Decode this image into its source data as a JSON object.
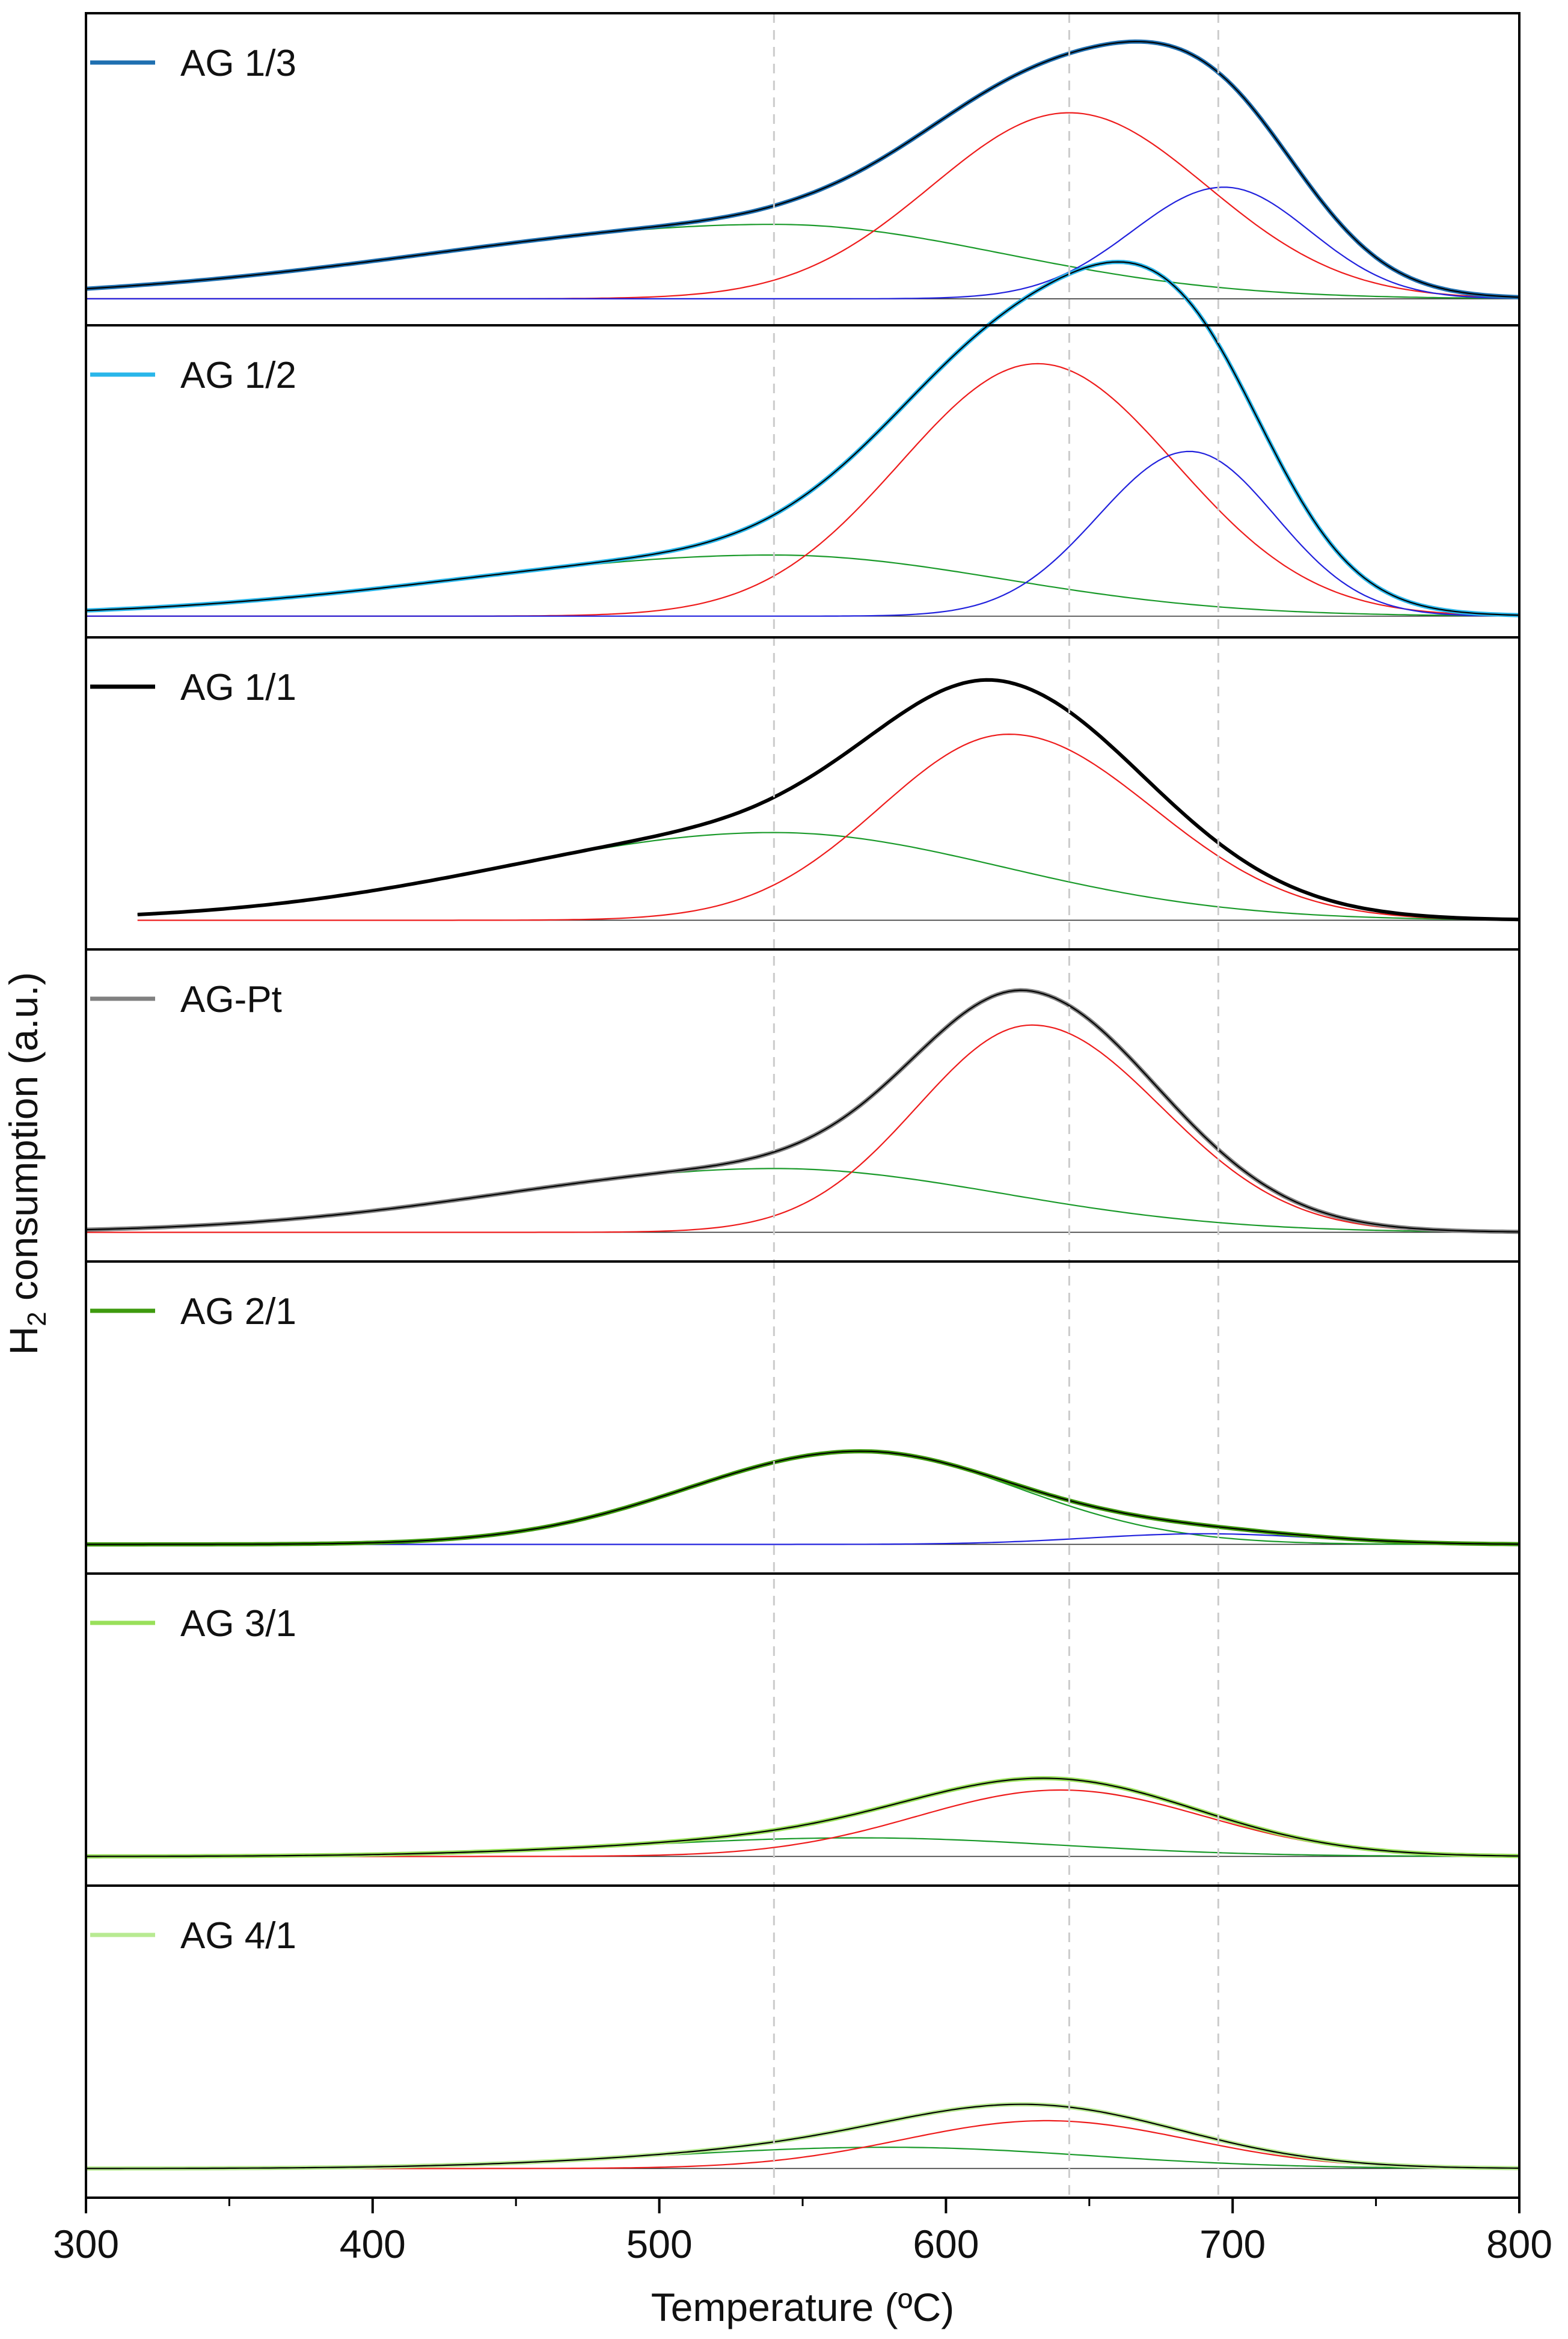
{
  "chart_data": {
    "type": "line",
    "title": "",
    "xlabel": "Temperature (ºC)",
    "ylabel_main": "H",
    "ylabel_sub": "2",
    "ylabel_rest": " consumption (a.u.)",
    "xlim": [
      300,
      800
    ],
    "xticks": [
      300,
      400,
      500,
      600,
      700,
      800
    ],
    "ylim": [
      0,
      1
    ],
    "reference_lines_x": [
      540,
      643,
      695
    ],
    "colors": {
      "fit": "#000000",
      "red": "#ee1c1c",
      "green": "#1a9a2a",
      "blue": "#2222dd",
      "ref": "#cccccc"
    },
    "panels": [
      {
        "name": "AG 1/3",
        "legend_color": "#1f6fb0",
        "base": 0.05,
        "x_start": 300,
        "components": [
          {
            "label": "green",
            "color": "#1a9a2a",
            "center": 540,
            "amp": 0.28,
            "sigL": 120,
            "sigR": 80
          },
          {
            "label": "red",
            "color": "#ee1c1c",
            "center": 643,
            "amp": 0.7,
            "sigL": 48,
            "sigR": 48
          },
          {
            "label": "blue",
            "color": "#2222dd",
            "center": 697,
            "amp": 0.42,
            "sigL": 32,
            "sigR": 30
          }
        ]
      },
      {
        "name": "AG 1/2",
        "legend_color": "#29b6ea",
        "base": 0.03,
        "x_start": 300,
        "components": [
          {
            "label": "green",
            "color": "#1a9a2a",
            "center": 540,
            "amp": 0.23,
            "sigL": 110,
            "sigR": 80
          },
          {
            "label": "red",
            "color": "#ee1c1c",
            "center": 632,
            "amp": 0.95,
            "sigL": 48,
            "sigR": 48
          },
          {
            "label": "blue",
            "color": "#2222dd",
            "center": 685,
            "amp": 0.62,
            "sigL": 32,
            "sigR": 30
          }
        ]
      },
      {
        "name": "AG 1/1",
        "legend_color": "#000000",
        "base": 0.06,
        "x_start": 318,
        "components": [
          {
            "label": "green",
            "color": "#1a9a2a",
            "center": 540,
            "amp": 0.33,
            "sigL": 95,
            "sigR": 80
          },
          {
            "label": "red",
            "color": "#ee1c1c",
            "center": 622,
            "amp": 0.7,
            "sigL": 45,
            "sigR": 50
          }
        ]
      },
      {
        "name": "AG-Pt",
        "legend_color": "#808080",
        "base": 0.06,
        "x_start": 300,
        "components": [
          {
            "label": "green",
            "color": "#1a9a2a",
            "center": 540,
            "amp": 0.24,
            "sigL": 95,
            "sigR": 80
          },
          {
            "label": "red",
            "color": "#ee1c1c",
            "center": 630,
            "amp": 0.78,
            "sigL": 40,
            "sigR": 45
          }
        ]
      },
      {
        "name": "AG 2/1",
        "legend_color": "#3e9a0e",
        "base": 0.06,
        "x_start": 300,
        "components": [
          {
            "label": "green",
            "color": "#1a9a2a",
            "center": 570,
            "amp": 0.35,
            "sigL": 60,
            "sigR": 55
          },
          {
            "label": "blue",
            "color": "#2222dd",
            "center": 690,
            "amp": 0.04,
            "sigL": 40,
            "sigR": 40
          }
        ]
      },
      {
        "name": "AG 3/1",
        "legend_color": "#99e05a",
        "base": 0.06,
        "x_start": 300,
        "components": [
          {
            "label": "green",
            "color": "#1a9a2a",
            "center": 570,
            "amp": 0.07,
            "sigL": 80,
            "sigR": 70
          },
          {
            "label": "red",
            "color": "#ee1c1c",
            "center": 640,
            "amp": 0.25,
            "sigL": 50,
            "sigR": 50
          }
        ]
      },
      {
        "name": "AG 4/1",
        "legend_color": "#b8ea92",
        "base": 0.06,
        "x_start": 300,
        "components": [
          {
            "label": "green",
            "color": "#1a9a2a",
            "center": 580,
            "amp": 0.08,
            "sigL": 80,
            "sigR": 70
          },
          {
            "label": "red",
            "color": "#ee1c1c",
            "center": 635,
            "amp": 0.18,
            "sigL": 50,
            "sigR": 50
          }
        ]
      }
    ]
  }
}
